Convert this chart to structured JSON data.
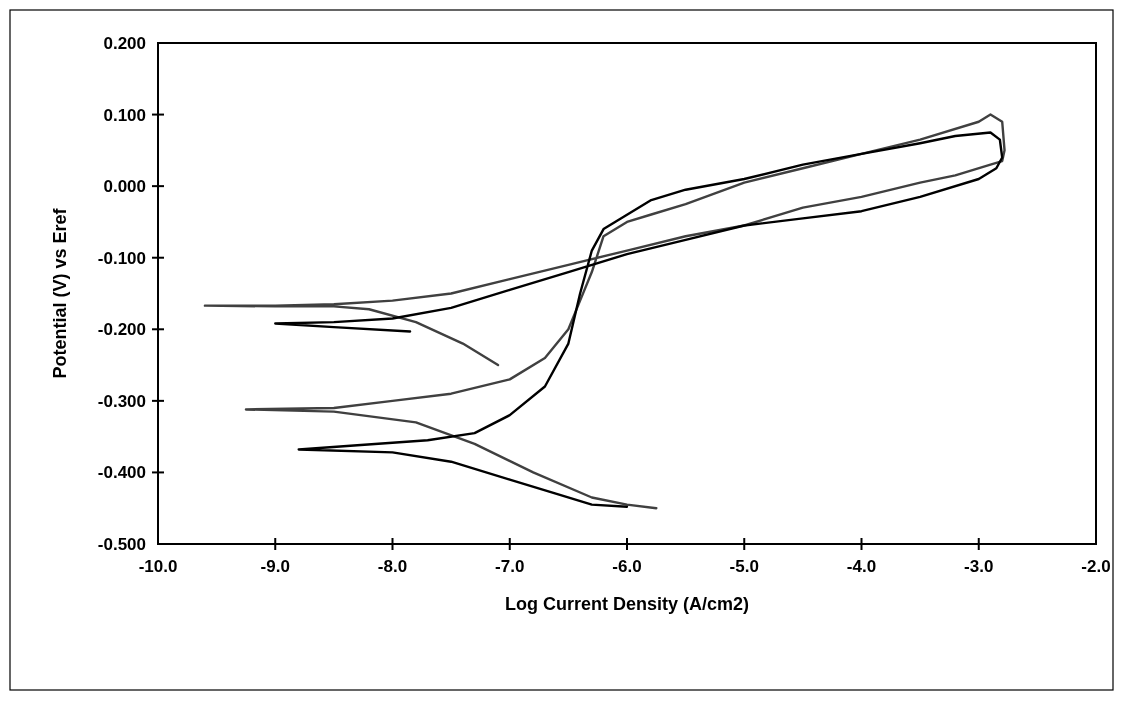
{
  "chart_data": {
    "type": "line",
    "xlabel": "Log Current Density (A/cm2)",
    "ylabel": "Potential (V) vs Eref",
    "xlim": [
      -10,
      -2
    ],
    "ylim": [
      -0.5,
      0.2
    ],
    "xticks": [
      {
        "value": -10,
        "label": "-10.0"
      },
      {
        "value": -9,
        "label": "-9.0"
      },
      {
        "value": -8,
        "label": "-8.0"
      },
      {
        "value": -7,
        "label": "-7.0"
      },
      {
        "value": -6,
        "label": "-6.0"
      },
      {
        "value": -5,
        "label": "-5.0"
      },
      {
        "value": -4,
        "label": "-4.0"
      },
      {
        "value": -3,
        "label": "-3.0"
      },
      {
        "value": -2,
        "label": "-2.0"
      }
    ],
    "yticks": [
      {
        "value": -0.5,
        "label": "-0.500"
      },
      {
        "value": -0.4,
        "label": "-0.400"
      },
      {
        "value": -0.3,
        "label": "-0.300"
      },
      {
        "value": -0.2,
        "label": "-0.200"
      },
      {
        "value": -0.1,
        "label": "-0.100"
      },
      {
        "value": 0,
        "label": "0.000"
      },
      {
        "value": 0.1,
        "label": "0.100"
      },
      {
        "value": 0.2,
        "label": "0.200"
      }
    ],
    "grid": false,
    "marker": "none",
    "line_style": "solid",
    "series": [
      {
        "color": "#404040",
        "x": [
          -5.75,
          -6.0,
          -6.3,
          -6.8,
          -7.3,
          -7.8,
          -8.5,
          -9.25,
          -8.5,
          -8.0,
          -7.5,
          -7.0,
          -6.7,
          -6.5,
          -6.4,
          -6.3,
          -6.2,
          -6.0,
          -5.8,
          -5.5,
          -5.0,
          -4.5,
          -4.0,
          -3.5,
          -3.0,
          -2.9,
          -2.8,
          -2.78,
          -2.8,
          -2.9,
          -3.2,
          -3.5,
          -4.0,
          -4.5,
          -5.0,
          -5.5,
          -6.0,
          -6.5,
          -7.0,
          -7.5,
          -8.0,
          -8.5,
          -9.0,
          -9.6,
          -9.0,
          -8.5,
          -8.2,
          -7.8,
          -7.4,
          -7.1
        ],
        "values": [
          -0.45,
          -0.445,
          -0.435,
          -0.4,
          -0.36,
          -0.33,
          -0.315,
          -0.312,
          -0.31,
          -0.3,
          -0.29,
          -0.27,
          -0.24,
          -0.2,
          -0.16,
          -0.12,
          -0.07,
          -0.05,
          -0.04,
          -0.025,
          0.005,
          0.025,
          0.045,
          0.065,
          0.09,
          0.1,
          0.09,
          0.05,
          0.035,
          0.03,
          0.015,
          0.005,
          -0.015,
          -0.03,
          -0.055,
          -0.07,
          -0.09,
          -0.11,
          -0.13,
          -0.15,
          -0.16,
          -0.165,
          -0.167,
          -0.167,
          -0.168,
          -0.168,
          -0.172,
          -0.19,
          -0.22,
          -0.25
        ]
      },
      {
        "color": "#000000",
        "x": [
          -7.85,
          -8.5,
          -9.0,
          -8.5,
          -8.0,
          -7.5,
          -7.0,
          -6.5,
          -6.0,
          -5.5,
          -5.0,
          -4.5,
          -4.0,
          -3.5,
          -3.0,
          -2.85,
          -2.8,
          -2.82,
          -2.9,
          -3.2,
          -3.5,
          -4.0,
          -4.5,
          -5.0,
          -5.5,
          -5.8,
          -6.0,
          -6.2,
          -6.3,
          -6.4,
          -6.5,
          -6.7,
          -7.0,
          -7.3,
          -7.7,
          -8.3,
          -8.8,
          -8.0,
          -7.5,
          -7.0,
          -6.6,
          -6.3,
          -6.0
        ],
        "values": [
          -0.203,
          -0.197,
          -0.192,
          -0.19,
          -0.185,
          -0.17,
          -0.145,
          -0.12,
          -0.095,
          -0.075,
          -0.055,
          -0.045,
          -0.035,
          -0.015,
          0.01,
          0.025,
          0.04,
          0.065,
          0.075,
          0.07,
          0.06,
          0.045,
          0.03,
          0.01,
          -0.005,
          -0.02,
          -0.04,
          -0.06,
          -0.09,
          -0.15,
          -0.22,
          -0.28,
          -0.32,
          -0.345,
          -0.355,
          -0.362,
          -0.368,
          -0.372,
          -0.385,
          -0.41,
          -0.43,
          -0.445,
          -0.448
        ]
      }
    ]
  }
}
